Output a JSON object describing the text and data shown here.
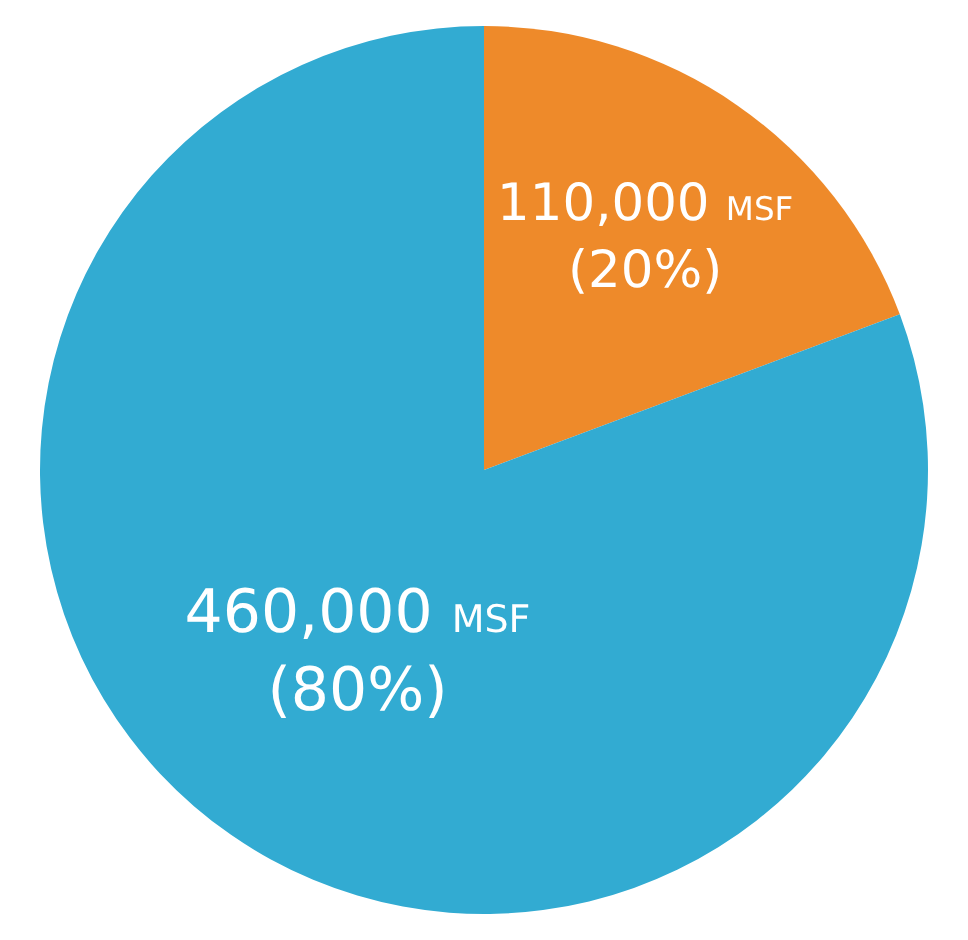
{
  "chart_data": {
    "type": "pie",
    "categories": [
      null,
      null
    ],
    "values": [
      110000,
      460000
    ],
    "colors": [
      "#ee8a2a",
      "#32abd2"
    ],
    "value_labels": [
      "110,000 MSF (20%)",
      "460,000 MSF (80%)"
    ],
    "legend": false
  }
}
